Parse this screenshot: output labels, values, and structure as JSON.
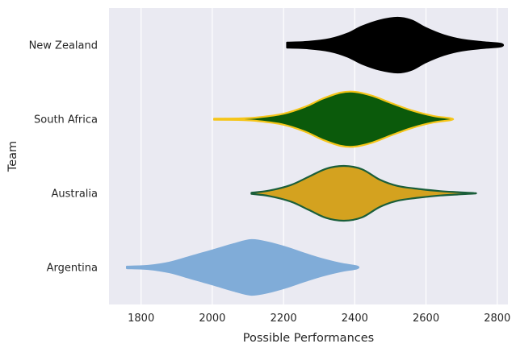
{
  "chart_data": {
    "type": "violin",
    "orientation": "horizontal",
    "xlabel": "Possible Performances",
    "ylabel": "Team",
    "xlim": [
      1710,
      2830
    ],
    "xticks": [
      1800,
      2000,
      2200,
      2400,
      2600,
      2800
    ],
    "grid": true,
    "teams": [
      {
        "name": "New Zealand",
        "fill": "#000000",
        "outline": "#000000",
        "range": [
          2210,
          2810
        ],
        "density": [
          [
            2210,
            0.09
          ],
          [
            2270,
            0.12
          ],
          [
            2330,
            0.22
          ],
          [
            2380,
            0.42
          ],
          [
            2420,
            0.68
          ],
          [
            2470,
            0.9
          ],
          [
            2520,
            1.0
          ],
          [
            2560,
            0.9
          ],
          [
            2600,
            0.62
          ],
          [
            2650,
            0.36
          ],
          [
            2700,
            0.2
          ],
          [
            2760,
            0.11
          ],
          [
            2810,
            0.05
          ]
        ]
      },
      {
        "name": "South Africa",
        "fill": "#0b5a0b",
        "outline": "#f5c518",
        "range": [
          2005,
          2670
        ],
        "density": [
          [
            2005,
            0.02
          ],
          [
            2080,
            0.03
          ],
          [
            2130,
            0.07
          ],
          [
            2200,
            0.2
          ],
          [
            2260,
            0.45
          ],
          [
            2310,
            0.75
          ],
          [
            2360,
            0.97
          ],
          [
            2400,
            1.0
          ],
          [
            2450,
            0.85
          ],
          [
            2500,
            0.6
          ],
          [
            2560,
            0.32
          ],
          [
            2620,
            0.12
          ],
          [
            2670,
            0.03
          ]
        ]
      },
      {
        "name": "Australia",
        "fill": "#d4a21f",
        "outline": "#1a5e3a",
        "range": [
          2110,
          2735
        ],
        "density": [
          [
            2110,
            0.02
          ],
          [
            2160,
            0.1
          ],
          [
            2220,
            0.3
          ],
          [
            2270,
            0.6
          ],
          [
            2320,
            0.9
          ],
          [
            2370,
            1.0
          ],
          [
            2420,
            0.88
          ],
          [
            2470,
            0.5
          ],
          [
            2520,
            0.27
          ],
          [
            2580,
            0.16
          ],
          [
            2640,
            0.08
          ],
          [
            2690,
            0.04
          ],
          [
            2735,
            0.01
          ]
        ]
      },
      {
        "name": "Argentina",
        "fill": "#80acd8",
        "outline": "#80acd8",
        "range": [
          1760,
          2405
        ],
        "density": [
          [
            1760,
            0.03
          ],
          [
            1820,
            0.06
          ],
          [
            1880,
            0.18
          ],
          [
            1940,
            0.4
          ],
          [
            2000,
            0.62
          ],
          [
            2060,
            0.85
          ],
          [
            2110,
            1.0
          ],
          [
            2160,
            0.9
          ],
          [
            2210,
            0.72
          ],
          [
            2260,
            0.5
          ],
          [
            2310,
            0.3
          ],
          [
            2360,
            0.14
          ],
          [
            2405,
            0.04
          ]
        ]
      }
    ]
  }
}
